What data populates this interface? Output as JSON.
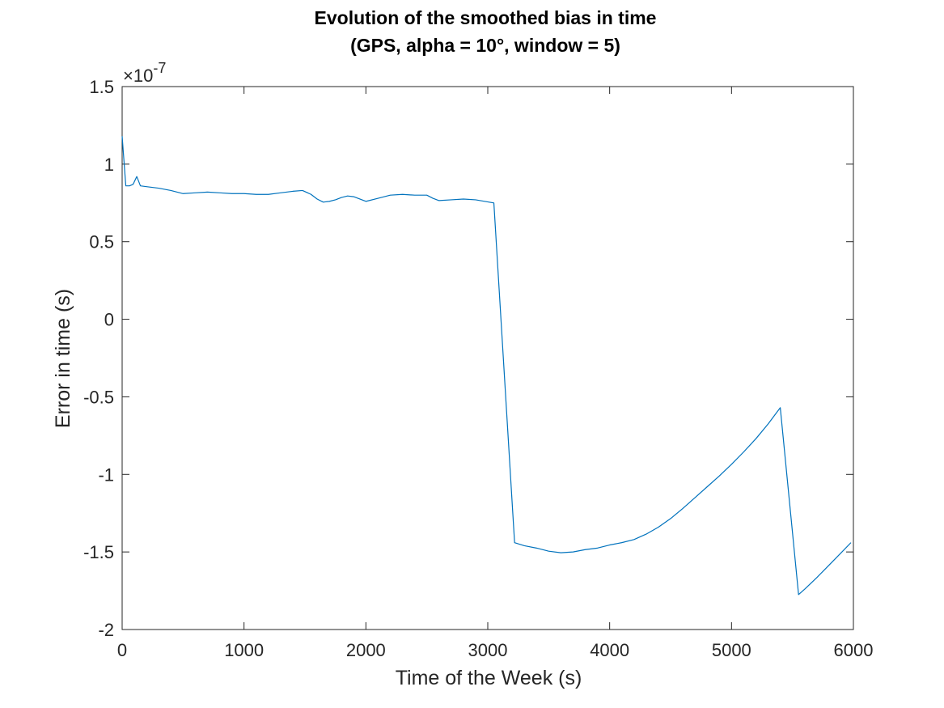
{
  "chart_data": {
    "type": "line",
    "title_lines": [
      "Evolution of the smoothed bias in time",
      "(GPS, alpha = 10°, window = 5)"
    ],
    "xlabel": "Time of the Week (s)",
    "ylabel": "Error in time (s)",
    "y_exponent_label": "×10",
    "y_exponent_power": "-7",
    "xlim": [
      0,
      6000
    ],
    "ylim": [
      -2,
      1.5
    ],
    "x_ticks": [
      0,
      1000,
      2000,
      3000,
      4000,
      5000,
      6000
    ],
    "x_tick_labels": [
      "0",
      "1000",
      "2000",
      "3000",
      "4000",
      "5000",
      "6000"
    ],
    "y_ticks": [
      -2,
      -1.5,
      -1,
      -0.5,
      0,
      0.5,
      1,
      1.5
    ],
    "y_tick_labels": [
      "-2",
      "-1.5",
      "-1",
      "-0.5",
      "0",
      "0.5",
      "1",
      "1.5"
    ],
    "grid": false,
    "line_color": "#0072BD",
    "series": [
      {
        "x": [
          0,
          30,
          60,
          90,
          120,
          150,
          200,
          300,
          400,
          500,
          600,
          700,
          800,
          900,
          1000,
          1100,
          1200,
          1300,
          1400,
          1480,
          1550,
          1600,
          1650,
          1700,
          1750,
          1800,
          1850,
          1900,
          1950,
          2000,
          2100,
          2200,
          2300,
          2400,
          2500,
          2550,
          2600,
          2700,
          2800,
          2900,
          3050,
          3220,
          3300,
          3400,
          3500,
          3600,
          3700,
          3800,
          3900,
          4000,
          4100,
          4200,
          4300,
          4400,
          4500,
          4600,
          4700,
          4800,
          4900,
          5000,
          5100,
          5200,
          5300,
          5400,
          5550,
          5600,
          5700,
          5800,
          5900,
          5980
        ],
        "y": [
          1.18,
          0.86,
          0.86,
          0.87,
          0.92,
          0.86,
          0.855,
          0.845,
          0.83,
          0.81,
          0.815,
          0.82,
          0.815,
          0.81,
          0.81,
          0.805,
          0.805,
          0.815,
          0.825,
          0.83,
          0.805,
          0.775,
          0.755,
          0.76,
          0.77,
          0.785,
          0.795,
          0.79,
          0.775,
          0.76,
          0.78,
          0.8,
          0.805,
          0.8,
          0.8,
          0.78,
          0.765,
          0.77,
          0.775,
          0.77,
          0.75,
          -1.44,
          -1.46,
          -1.475,
          -1.495,
          -1.505,
          -1.5,
          -1.485,
          -1.475,
          -1.455,
          -1.44,
          -1.42,
          -1.385,
          -1.34,
          -1.285,
          -1.22,
          -1.15,
          -1.08,
          -1.01,
          -0.935,
          -0.855,
          -0.77,
          -0.675,
          -0.57,
          -1.775,
          -1.74,
          -1.665,
          -1.585,
          -1.505,
          -1.44
        ]
      }
    ]
  }
}
